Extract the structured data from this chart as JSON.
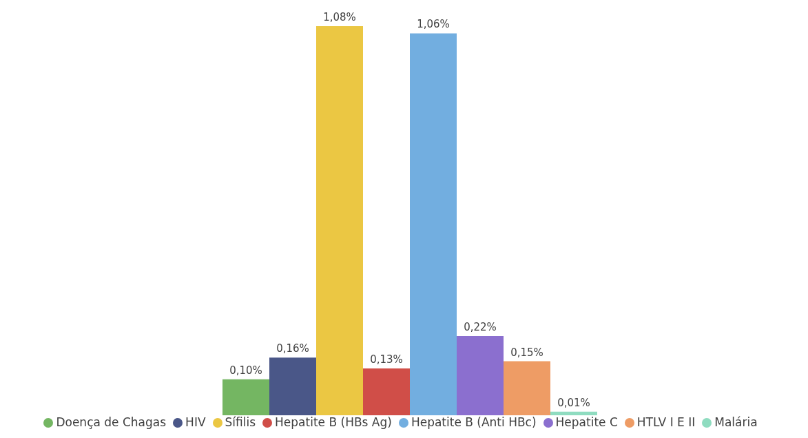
{
  "chart_data": {
    "type": "bar",
    "categories": [
      null
    ],
    "legend": "bottom",
    "series": [
      {
        "name": "Doença de Chagas",
        "color": "#74b662",
        "values": [
          0.1
        ],
        "value_labels": [
          "0,10%"
        ]
      },
      {
        "name": "HIV",
        "color": "#4a5788",
        "values": [
          0.16
        ],
        "value_labels": [
          "0,16%"
        ]
      },
      {
        "name": "Sífilis",
        "color": "#ebc743",
        "values": [
          1.08
        ],
        "value_labels": [
          "1,08%"
        ]
      },
      {
        "name": "Hepatite B (HBs Ag)",
        "color": "#d04e48",
        "values": [
          0.13
        ],
        "value_labels": [
          "0,13%"
        ]
      },
      {
        "name": "Hepatite B (Anti HBc)",
        "color": "#72aee0",
        "values": [
          1.06
        ],
        "value_labels": [
          "1,06%"
        ]
      },
      {
        "name": "Hepatite C",
        "color": "#8b6fcf",
        "values": [
          0.22
        ],
        "value_labels": [
          "0,22%"
        ]
      },
      {
        "name": "HTLV I E II",
        "color": "#ee9c65",
        "values": [
          0.15
        ],
        "value_labels": [
          "0,15%"
        ]
      },
      {
        "name": "Malária",
        "color": "#8fdcc0",
        "values": [
          0.01
        ],
        "value_labels": [
          "0,01%"
        ]
      }
    ]
  }
}
